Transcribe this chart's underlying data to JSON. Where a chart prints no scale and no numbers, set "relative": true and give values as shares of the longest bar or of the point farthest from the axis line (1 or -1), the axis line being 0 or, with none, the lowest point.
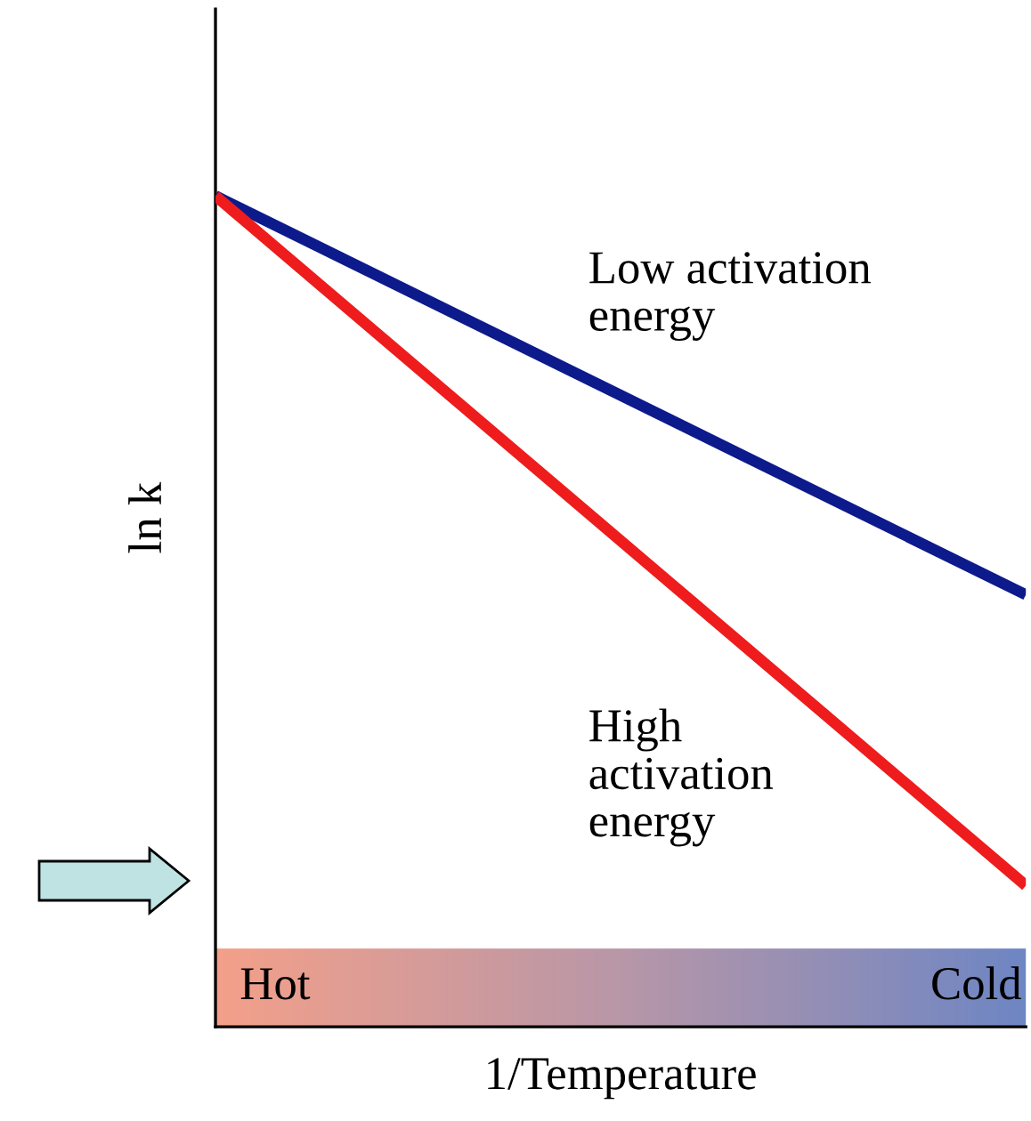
{
  "chart_data": {
    "type": "line",
    "relative": true,
    "xlabel": "1/Temperature",
    "ylabel": "ln k",
    "categories": [
      null,
      null
    ],
    "series": [
      {
        "name": "Low activation\nenergy",
        "color": "#0c1a8c",
        "values": [
          1,
          0.52
        ]
      },
      {
        "name": "High\nactivation\nenergy",
        "color": "#ee1c1c",
        "values": [
          1,
          0.17
        ]
      }
    ],
    "annotations": [
      "Hot",
      "Cold"
    ],
    "legend": false,
    "marker": "none",
    "line_style": "solid"
  }
}
